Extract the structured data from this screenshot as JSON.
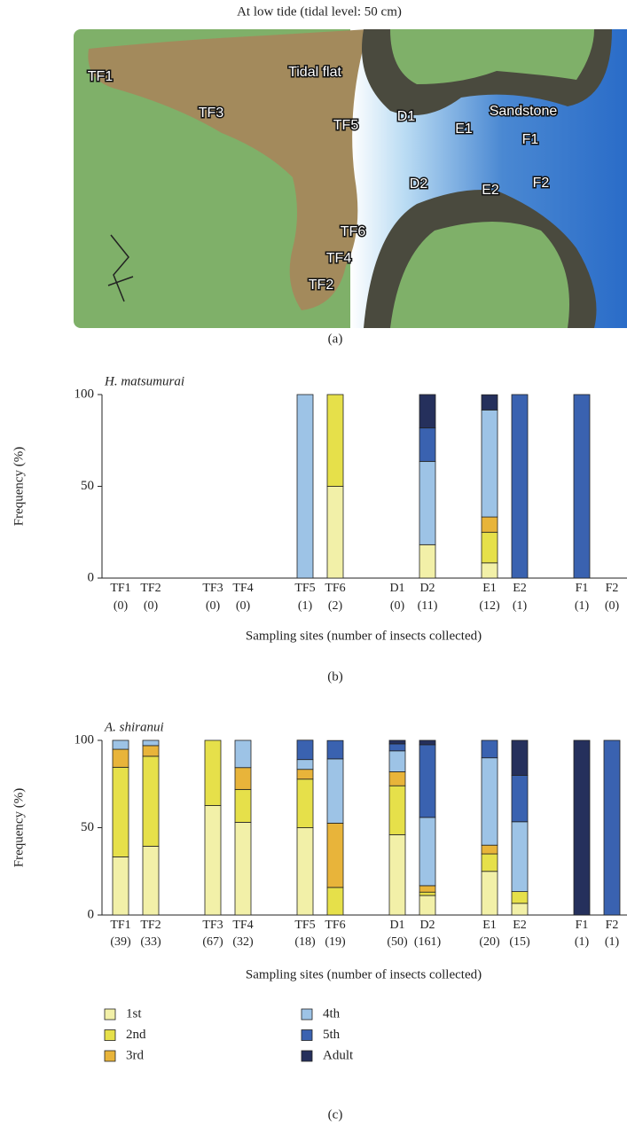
{
  "panels": [
    "(a)",
    "(b)",
    "(c)"
  ],
  "map": {
    "title": "At low tide (tidal level: 50 cm)",
    "labels": [
      "TF1",
      "Tidal flat",
      "TF3",
      "TF5",
      "D1",
      "E1",
      "Sandstone",
      "F1",
      "D2",
      "E2",
      "F2",
      "TF6",
      "TF4",
      "TF2"
    ]
  },
  "chart_data": [
    {
      "type": "bar",
      "stacked": true,
      "title": "H. matsumurai",
      "ylabel": "Frequency (%)",
      "xlabel": "Sampling sites (number of insects collected)",
      "categories": [
        "TF1",
        "TF2",
        "TF3",
        "TF4",
        "TF5",
        "TF6",
        "D1",
        "D2",
        "E1",
        "E2",
        "F1",
        "F2"
      ],
      "category_notes": [
        "(0)",
        "(0)",
        "(0)",
        "(0)",
        "(1)",
        "(2)",
        "(0)",
        "(11)",
        "(12)",
        "(1)",
        "(1)",
        "(0)"
      ],
      "ylim": [
        0,
        100
      ],
      "yticks": [
        0,
        50,
        100
      ],
      "series": [
        {
          "color": "#f2f0a8",
          "values": [
            0,
            0,
            0,
            0,
            0,
            50,
            0,
            18.2,
            8.3,
            0,
            0,
            0
          ]
        },
        {
          "color": "#e6e04a",
          "values": [
            0,
            0,
            0,
            0,
            0,
            50,
            0,
            0,
            16.7,
            0,
            0,
            0
          ]
        },
        {
          "color": "#e8b43a",
          "values": [
            0,
            0,
            0,
            0,
            0,
            0,
            0,
            0,
            8.3,
            0,
            0,
            0
          ]
        },
        {
          "color": "#9dc3e6",
          "values": [
            0,
            0,
            0,
            0,
            100,
            0,
            0,
            45.4,
            58.3,
            0,
            0,
            0
          ]
        },
        {
          "color": "#3a62b0",
          "values": [
            0,
            0,
            0,
            0,
            0,
            0,
            0,
            18.2,
            0,
            100,
            100,
            0
          ]
        },
        {
          "color": "#25305c",
          "values": [
            0,
            0,
            0,
            0,
            0,
            0,
            0,
            18.2,
            8.3,
            0,
            0,
            0
          ]
        }
      ]
    },
    {
      "type": "bar",
      "stacked": true,
      "title": "A. shiranui",
      "ylabel": "Frequency (%)",
      "xlabel": "Sampling sites (number of insects collected)",
      "categories": [
        "TF1",
        "TF2",
        "TF3",
        "TF4",
        "TF5",
        "TF6",
        "D1",
        "D2",
        "E1",
        "E2",
        "F1",
        "F2"
      ],
      "category_notes": [
        "(39)",
        "(33)",
        "(67)",
        "(32)",
        "(18)",
        "(19)",
        "(50)",
        "(161)",
        "(20)",
        "(15)",
        "(1)",
        "(1)"
      ],
      "ylim": [
        0,
        100
      ],
      "yticks": [
        0,
        50,
        100
      ],
      "series": [
        {
          "name": "1st",
          "color": "#f2f0a8",
          "values": [
            33.3,
            39.4,
            62.7,
            53.1,
            50,
            0,
            46,
            11.2,
            25,
            6.7,
            0,
            0
          ]
        },
        {
          "name": "2nd",
          "color": "#e6e04a",
          "values": [
            51.3,
            51.5,
            37.3,
            18.8,
            27.8,
            15.8,
            28,
            1.9,
            10,
            6.7,
            0,
            0
          ]
        },
        {
          "name": "3rd",
          "color": "#e8b43a",
          "values": [
            10.3,
            6.1,
            0,
            12.5,
            5.6,
            36.8,
            8,
            3.7,
            5,
            0,
            0,
            0
          ]
        },
        {
          "name": "4th",
          "color": "#9dc3e6",
          "values": [
            5.1,
            3.0,
            0,
            15.6,
            5.6,
            36.8,
            12,
            39.1,
            50,
            40,
            0,
            0
          ]
        },
        {
          "name": "5th",
          "color": "#3a62b0",
          "values": [
            0,
            0,
            0,
            0,
            11.1,
            10.5,
            4,
            41.6,
            10,
            26.6,
            0,
            100
          ]
        },
        {
          "name": "Adult",
          "color": "#25305c",
          "values": [
            0,
            0,
            0,
            0,
            0,
            0,
            2,
            2.5,
            0,
            20,
            100,
            0
          ]
        }
      ]
    }
  ]
}
